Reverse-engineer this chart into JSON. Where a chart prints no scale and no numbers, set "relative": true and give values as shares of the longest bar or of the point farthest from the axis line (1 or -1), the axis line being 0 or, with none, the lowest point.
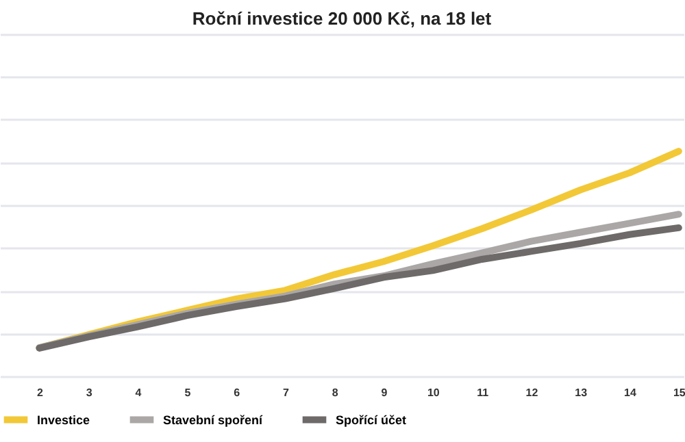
{
  "chart_data": {
    "type": "line",
    "title": "Roční investice 20 000 Kč, na 18 let",
    "relative": true,
    "x": [
      2,
      3,
      4,
      5,
      6,
      7,
      8,
      9,
      10,
      11,
      12,
      13,
      14,
      15
    ],
    "xlim": [
      1.2,
      15.1
    ],
    "xticks": [
      2,
      3,
      4,
      5,
      6,
      7,
      8,
      9,
      10,
      11,
      12,
      13,
      14,
      15
    ],
    "series": [
      {
        "name": "Investice",
        "color": "#f2c837",
        "values": [
          0.127,
          0.185,
          0.242,
          0.293,
          0.344,
          0.382,
          0.452,
          0.51,
          0.58,
          0.656,
          0.739,
          0.828,
          0.904,
          1.0
        ]
      },
      {
        "name": "Stavební spoření",
        "color": "#aaa7a6",
        "values": [
          0.127,
          0.18,
          0.23,
          0.28,
          0.32,
          0.357,
          0.41,
          0.446,
          0.5,
          0.548,
          0.6,
          0.64,
          0.68,
          0.72
        ]
      },
      {
        "name": "Spořící účet",
        "color": "#6e6a69",
        "values": [
          0.125,
          0.175,
          0.22,
          0.27,
          0.31,
          0.345,
          0.39,
          0.44,
          0.47,
          0.52,
          0.555,
          0.59,
          0.63,
          0.66
        ]
      }
    ],
    "grid": "y",
    "legend": "bottom",
    "marker": "none",
    "line_style": "solid"
  }
}
